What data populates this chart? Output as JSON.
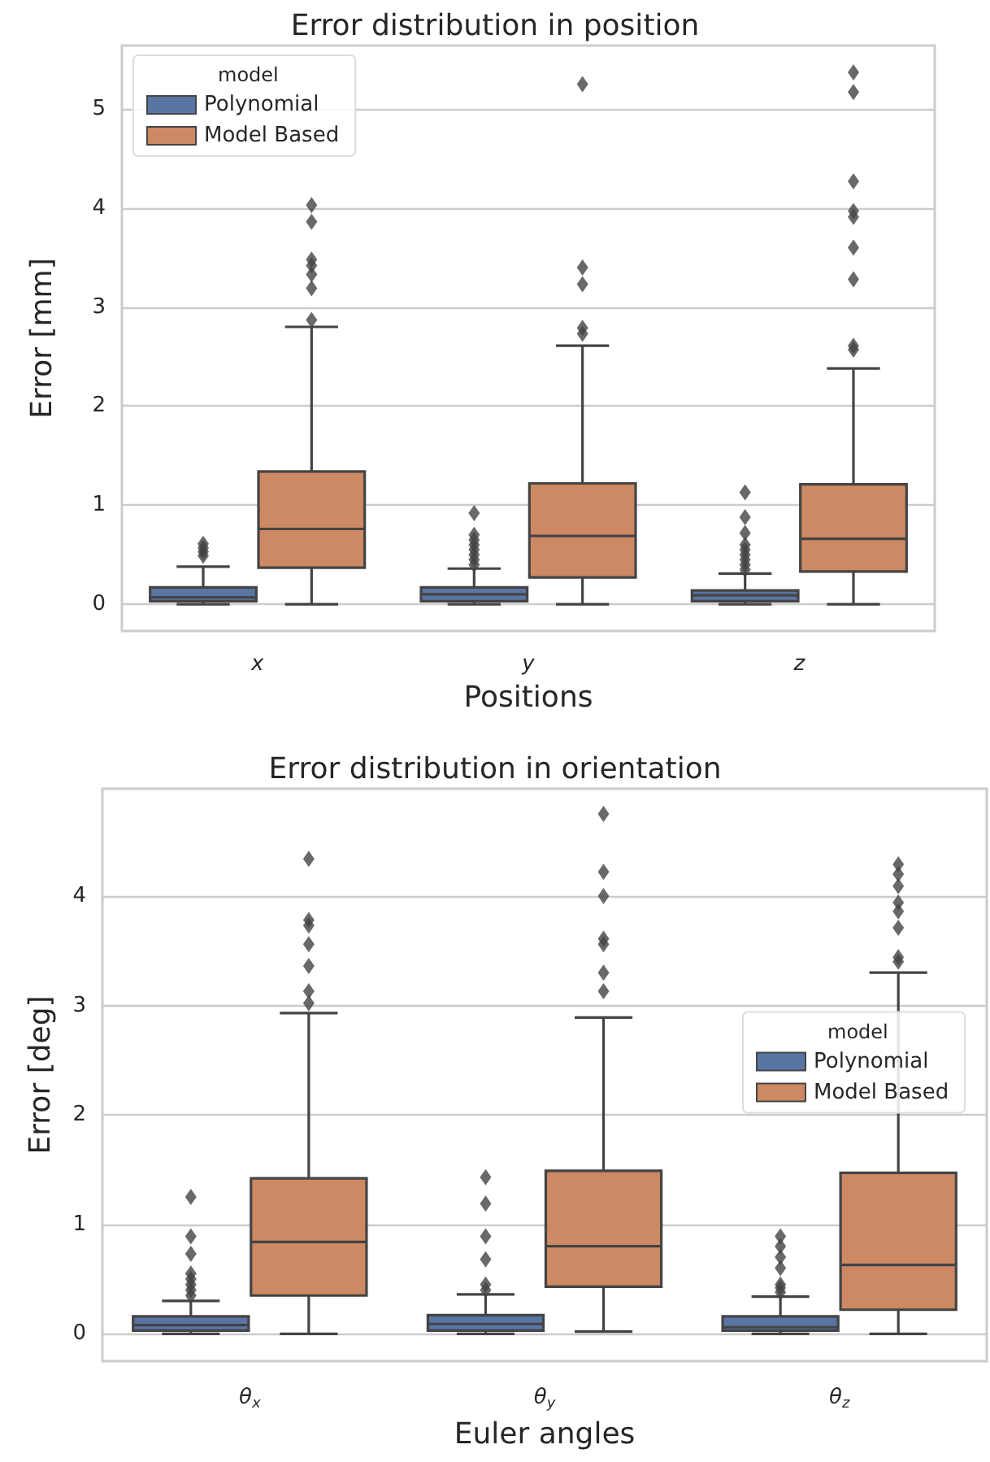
{
  "chart_data": [
    {
      "type": "box",
      "title": "Error distribution in position",
      "xlabel": "Positions",
      "ylabel": "Error [mm]",
      "legend_title": "model",
      "legend": "top left",
      "grid": "y",
      "categories": [
        "x",
        "y",
        "z"
      ],
      "ylim": [
        -0.27,
        5.64
      ],
      "yticks": [
        0,
        1,
        2,
        3,
        4,
        5
      ],
      "series": [
        {
          "name": "Polynomial",
          "color": "#5975a4",
          "boxes": [
            {
              "low": 0,
              "q1": 0.03,
              "median": 0.07,
              "q3": 0.17,
              "high": 0.38,
              "outliers": [
                0.49,
                0.53,
                0.57,
                0.61
              ]
            },
            {
              "low": 0,
              "q1": 0.03,
              "median": 0.1,
              "q3": 0.17,
              "high": 0.36,
              "outliers": [
                0.4,
                0.45,
                0.5,
                0.55,
                0.6,
                0.65,
                0.7,
                0.92
              ]
            },
            {
              "low": 0,
              "q1": 0.03,
              "median": 0.09,
              "q3": 0.14,
              "high": 0.31,
              "outliers": [
                0.35,
                0.4,
                0.45,
                0.5,
                0.55,
                0.6,
                0.72,
                0.88,
                1.13
              ]
            }
          ]
        },
        {
          "name": "Model Based",
          "color": "#cc8963",
          "boxes": [
            {
              "low": 0,
              "q1": 0.37,
              "median": 0.76,
              "q3": 1.34,
              "high": 2.8,
              "outliers": [
                2.87,
                3.19,
                3.33,
                3.42,
                3.48,
                3.86,
                4.03
              ]
            },
            {
              "low": 0,
              "q1": 0.27,
              "median": 0.69,
              "q3": 1.22,
              "high": 2.61,
              "outliers": [
                2.73,
                2.79,
                3.23,
                3.4,
                5.25
              ]
            },
            {
              "low": 0,
              "q1": 0.33,
              "median": 0.66,
              "q3": 1.21,
              "high": 2.38,
              "outliers": [
                2.57,
                2.61,
                3.28,
                3.6,
                3.91,
                3.97,
                4.27,
                5.17,
                5.37
              ]
            }
          ]
        }
      ]
    },
    {
      "type": "box",
      "title": "Error distribution in orientation",
      "xlabel": "Euler angles",
      "ylabel": "Error [deg]",
      "legend_title": "model",
      "legend": "right",
      "grid": "y",
      "categories": [
        "θ$_{x}$",
        "θ$_{y}$",
        "θ$_{z}$"
      ],
      "ylim": [
        -0.25,
        4.98
      ],
      "yticks": [
        0,
        1,
        2,
        3,
        4
      ],
      "series": [
        {
          "name": "Polynomial",
          "color": "#5975a4",
          "boxes": [
            {
              "low": 0,
              "q1": 0.03,
              "median": 0.08,
              "q3": 0.16,
              "high": 0.3,
              "outliers": [
                0.35,
                0.4,
                0.45,
                0.5,
                0.55,
                0.73,
                0.89,
                1.25
              ]
            },
            {
              "low": 0,
              "q1": 0.03,
              "median": 0.09,
              "q3": 0.17,
              "high": 0.36,
              "outliers": [
                0.4,
                0.45,
                0.68,
                0.89,
                1.19,
                1.43
              ]
            },
            {
              "low": 0,
              "q1": 0.03,
              "median": 0.06,
              "q3": 0.16,
              "high": 0.34,
              "outliers": [
                0.38,
                0.42,
                0.45,
                0.6,
                0.7,
                0.8,
                0.89
              ]
            }
          ]
        },
        {
          "name": "Model Based",
          "color": "#cc8963",
          "boxes": [
            {
              "low": 0,
              "q1": 0.35,
              "median": 0.84,
              "q3": 1.42,
              "high": 2.93,
              "outliers": [
                3.02,
                3.13,
                3.36,
                3.56,
                3.73,
                3.78,
                4.34
              ]
            },
            {
              "low": 0.02,
              "q1": 0.43,
              "median": 0.8,
              "q3": 1.49,
              "high": 2.89,
              "outliers": [
                3.13,
                3.3,
                3.56,
                3.61,
                4.0,
                4.22,
                4.75
              ]
            },
            {
              "low": 0,
              "q1": 0.22,
              "median": 0.63,
              "q3": 1.47,
              "high": 3.3,
              "outliers": [
                3.4,
                3.44,
                3.71,
                3.86,
                3.94,
                4.09,
                4.2,
                4.29
              ]
            }
          ]
        }
      ]
    }
  ]
}
